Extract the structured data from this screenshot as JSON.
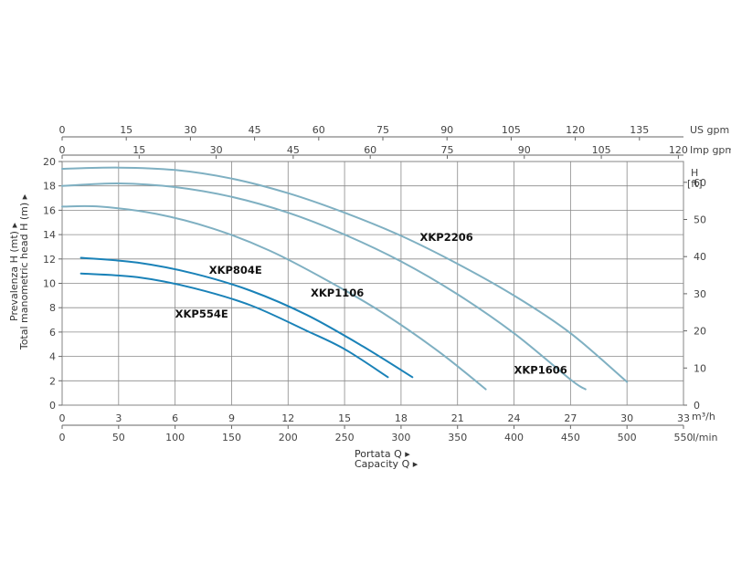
{
  "chart_data": {
    "type": "line",
    "grid": true,
    "x_axes": {
      "us_gpm": {
        "unit": "US gpm",
        "ticks": [
          0,
          15,
          30,
          45,
          60,
          75,
          90,
          105,
          120,
          135
        ],
        "range": [
          0,
          145.3
        ]
      },
      "imp_gpm": {
        "unit": "Imp gpm",
        "ticks": [
          0,
          15,
          30,
          45,
          60,
          75,
          90,
          105,
          120
        ],
        "range": [
          0,
          121
        ]
      },
      "m3h": {
        "unit": "m³/h",
        "ticks": [
          0,
          3,
          6,
          9,
          12,
          15,
          18,
          21,
          24,
          27,
          30,
          33
        ],
        "range": [
          0,
          33
        ]
      },
      "lmin": {
        "unit": "l/min",
        "ticks": [
          0,
          50,
          100,
          150,
          200,
          250,
          300,
          350,
          400,
          450,
          500,
          550
        ],
        "range": [
          0,
          550
        ]
      }
    },
    "y_axes": {
      "left": {
        "ticks": [
          0,
          2,
          4,
          6,
          8,
          10,
          12,
          14,
          16,
          18,
          20
        ],
        "range": [
          0,
          20
        ]
      },
      "right": {
        "unit_lines": [
          "H",
          "[ft]"
        ],
        "ticks": [
          0,
          10,
          20,
          30,
          40,
          50,
          60
        ],
        "range": [
          0,
          65.6
        ]
      }
    },
    "xlabel_lines": [
      "Portata Q ▸",
      "Capacity Q ▸"
    ],
    "ylabel_lines": [
      "Prevalenza H (mt) ▸",
      "Total manometric head H (m) ▸"
    ],
    "series": [
      {
        "name": "XKP2206",
        "color": "#7fb0c2",
        "points": [
          [
            0,
            19.4
          ],
          [
            3,
            19.5
          ],
          [
            6,
            19.3
          ],
          [
            9,
            18.6
          ],
          [
            12,
            17.4
          ],
          [
            15,
            15.8
          ],
          [
            18,
            13.9
          ],
          [
            21,
            11.6
          ],
          [
            24,
            9.0
          ],
          [
            27,
            5.9
          ],
          [
            30,
            1.9
          ]
        ]
      },
      {
        "name": "XKP1606",
        "color": "#7fb0c2",
        "points": [
          [
            0,
            18.0
          ],
          [
            3,
            18.2
          ],
          [
            6,
            17.9
          ],
          [
            9,
            17.1
          ],
          [
            12,
            15.8
          ],
          [
            15,
            14.0
          ],
          [
            18,
            11.8
          ],
          [
            21,
            9.1
          ],
          [
            24,
            5.9
          ],
          [
            27,
            2.1
          ],
          [
            27.8,
            1.3
          ]
        ]
      },
      {
        "name": "XKP1106",
        "color": "#7fb0c2",
        "points": [
          [
            0,
            16.3
          ],
          [
            2,
            16.3
          ],
          [
            5,
            15.7
          ],
          [
            8,
            14.5
          ],
          [
            11,
            12.7
          ],
          [
            14,
            10.3
          ],
          [
            17,
            7.6
          ],
          [
            20,
            4.4
          ],
          [
            22.5,
            1.3
          ]
        ]
      },
      {
        "name": "XKP804E",
        "color": "#1a82b8",
        "points": [
          [
            1,
            12.1
          ],
          [
            4,
            11.7
          ],
          [
            7,
            10.8
          ],
          [
            10,
            9.4
          ],
          [
            13,
            7.4
          ],
          [
            16,
            4.8
          ],
          [
            18.6,
            2.3
          ]
        ]
      },
      {
        "name": "XKP554E",
        "color": "#1a82b8",
        "points": [
          [
            1,
            10.8
          ],
          [
            4,
            10.5
          ],
          [
            7,
            9.6
          ],
          [
            10,
            8.2
          ],
          [
            13,
            6.1
          ],
          [
            15,
            4.6
          ],
          [
            17.3,
            2.3
          ]
        ]
      }
    ]
  }
}
